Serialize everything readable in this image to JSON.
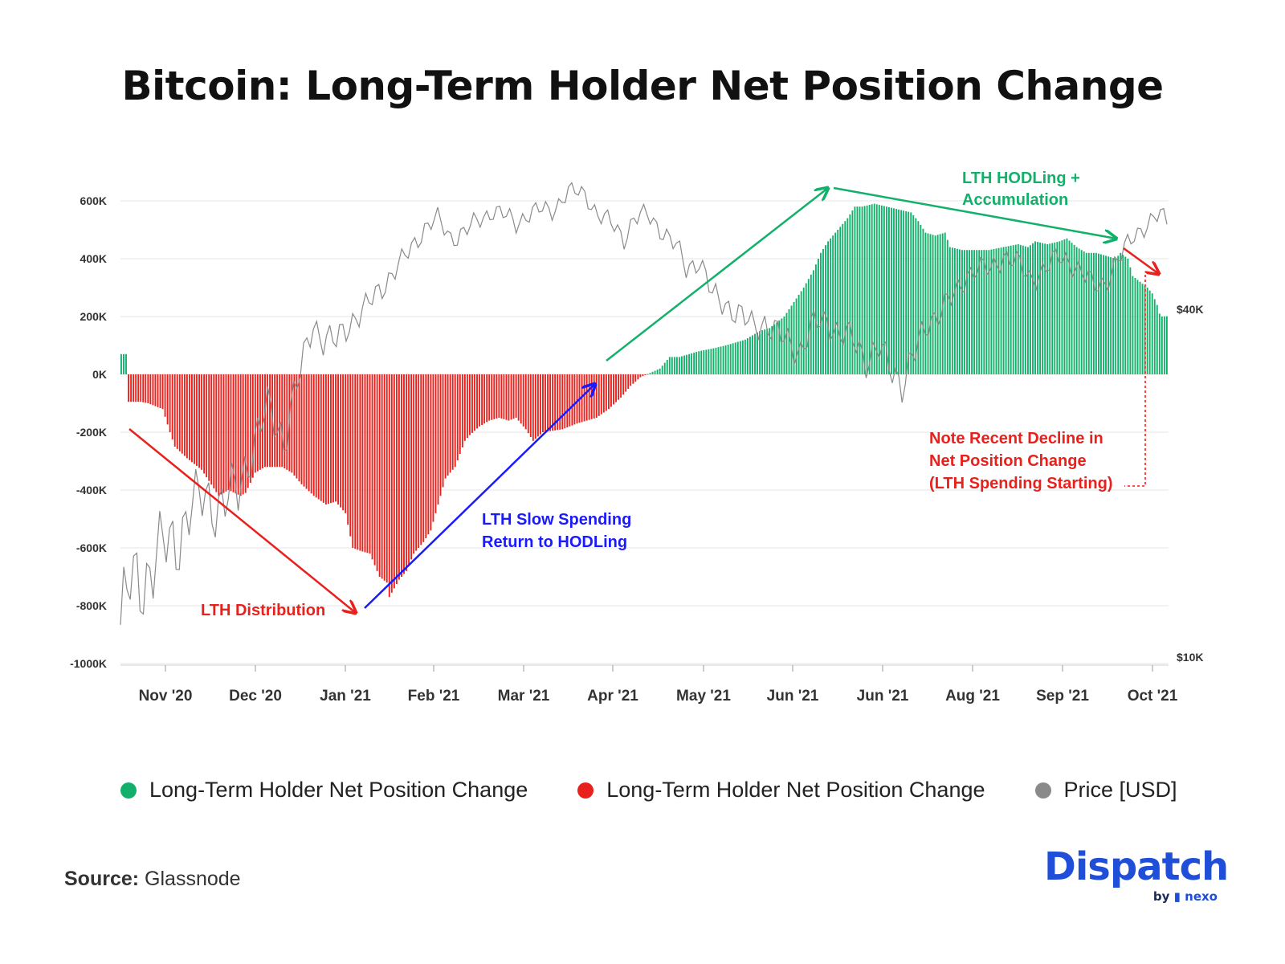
{
  "title": "Bitcoin: Long-Term Holder Net Position Change",
  "chart_data": {
    "type": "bar",
    "x_tick_labels": [
      "Nov '20",
      "Dec '20",
      "Jan '21",
      "Feb '21",
      "Mar '21",
      "Apr '21",
      "May '21",
      "Jun '21",
      "Jun '21",
      "Aug '21",
      "Sep '21",
      "Oct '21"
    ],
    "y_tick_labels": [
      "600K",
      "400K",
      "200K",
      "0K",
      "-200K",
      "-400K",
      "-600K",
      "-800K",
      "-1000K"
    ],
    "ylim": [
      -1000000,
      650000
    ],
    "y2_tick_labels": [
      "$40K",
      "$10K"
    ],
    "grid": true,
    "legend_position": "bottom",
    "series": [
      {
        "name": "Long-Term Holder Net Position Change",
        "color": "#12b06a",
        "kind": "bar",
        "x_range": [
          "2020-10-23",
          "2021-10-05"
        ],
        "anchors": [
          [
            0,
            70000
          ],
          [
            2,
            70000
          ],
          [
            3,
            -95000
          ],
          [
            8,
            -95000
          ],
          [
            11,
            -100000
          ],
          [
            14,
            -110000
          ],
          [
            17,
            -120000
          ],
          [
            20,
            -200000
          ],
          [
            22,
            -250000
          ],
          [
            27,
            -290000
          ],
          [
            33,
            -330000
          ],
          [
            40,
            -420000
          ],
          [
            44,
            -400000
          ],
          [
            49,
            -420000
          ],
          [
            51,
            -410000
          ],
          [
            55,
            -340000
          ],
          [
            59,
            -320000
          ],
          [
            66,
            -320000
          ],
          [
            70,
            -340000
          ],
          [
            74,
            -380000
          ],
          [
            79,
            -420000
          ],
          [
            84,
            -450000
          ],
          [
            88,
            -440000
          ],
          [
            90,
            -460000
          ],
          [
            92,
            -480000
          ],
          [
            95,
            -600000
          ],
          [
            98,
            -610000
          ],
          [
            102,
            -620000
          ],
          [
            106,
            -700000
          ],
          [
            109,
            -720000
          ],
          [
            110,
            -770000
          ],
          [
            114,
            -710000
          ],
          [
            117,
            -680000
          ],
          [
            120,
            -620000
          ],
          [
            124,
            -580000
          ],
          [
            127,
            -540000
          ],
          [
            130,
            -450000
          ],
          [
            133,
            -360000
          ],
          [
            137,
            -320000
          ],
          [
            141,
            -230000
          ],
          [
            143,
            -210000
          ],
          [
            147,
            -180000
          ],
          [
            151,
            -160000
          ],
          [
            155,
            -150000
          ],
          [
            159,
            -160000
          ],
          [
            162,
            -150000
          ],
          [
            164,
            -170000
          ],
          [
            166,
            -190000
          ],
          [
            169,
            -230000
          ],
          [
            173,
            -200000
          ],
          [
            177,
            -195000
          ],
          [
            181,
            -190000
          ],
          [
            187,
            -170000
          ],
          [
            191,
            -160000
          ],
          [
            195,
            -150000
          ],
          [
            200,
            -120000
          ],
          [
            205,
            -80000
          ],
          [
            209,
            -40000
          ],
          [
            213,
            -10000
          ],
          [
            217,
            5000
          ],
          [
            221,
            20000
          ],
          [
            225,
            60000
          ],
          [
            229,
            60000
          ],
          [
            233,
            70000
          ],
          [
            237,
            80000
          ],
          [
            243,
            90000
          ],
          [
            248,
            100000
          ],
          [
            252,
            110000
          ],
          [
            256,
            120000
          ],
          [
            262,
            150000
          ],
          [
            266,
            160000
          ],
          [
            269,
            180000
          ],
          [
            272,
            200000
          ],
          [
            276,
            250000
          ],
          [
            280,
            300000
          ],
          [
            284,
            360000
          ],
          [
            287,
            420000
          ],
          [
            290,
            460000
          ],
          [
            294,
            500000
          ],
          [
            298,
            540000
          ],
          [
            301,
            580000
          ],
          [
            304,
            580000
          ],
          [
            309,
            590000
          ],
          [
            314,
            580000
          ],
          [
            319,
            570000
          ],
          [
            324,
            560000
          ],
          [
            327,
            530000
          ],
          [
            330,
            490000
          ],
          [
            334,
            480000
          ],
          [
            338,
            490000
          ],
          [
            340,
            440000
          ],
          [
            345,
            430000
          ],
          [
            350,
            430000
          ],
          [
            356,
            430000
          ],
          [
            362,
            440000
          ],
          [
            368,
            450000
          ],
          [
            372,
            440000
          ],
          [
            375,
            460000
          ],
          [
            380,
            450000
          ],
          [
            385,
            460000
          ],
          [
            388,
            470000
          ],
          [
            392,
            440000
          ],
          [
            396,
            420000
          ],
          [
            400,
            420000
          ],
          [
            404,
            410000
          ],
          [
            408,
            400000
          ],
          [
            410,
            420000
          ],
          [
            413,
            400000
          ],
          [
            415,
            340000
          ],
          [
            418,
            320000
          ],
          [
            421,
            300000
          ],
          [
            423,
            280000
          ],
          [
            425,
            240000
          ],
          [
            426,
            210000
          ],
          [
            427,
            200000
          ]
        ]
      },
      {
        "name": "Long-Term Holder Net Position Change",
        "color": "#e8211d",
        "kind": "bar"
      },
      {
        "name": "Price [USD]",
        "color": "#8a8a8a",
        "kind": "line",
        "anchors": [
          [
            0,
            11500
          ],
          [
            3,
            13500
          ],
          [
            8,
            14000
          ],
          [
            12,
            15500
          ],
          [
            17,
            16000
          ],
          [
            22,
            18500
          ],
          [
            26,
            19000
          ],
          [
            30,
            18500
          ],
          [
            36,
            19500
          ],
          [
            40,
            23000
          ],
          [
            45,
            27000
          ],
          [
            50,
            24000
          ],
          [
            55,
            31000
          ],
          [
            59,
            38000
          ],
          [
            62,
            35500
          ],
          [
            66,
            35000
          ],
          [
            70,
            38000
          ],
          [
            75,
            40000
          ],
          [
            81,
            44500
          ],
          [
            86,
            48000
          ],
          [
            90,
            52000
          ],
          [
            93,
            55000
          ],
          [
            97,
            57000
          ],
          [
            101,
            53000
          ],
          [
            105,
            54000
          ],
          [
            110,
            57000
          ],
          [
            114,
            59000
          ],
          [
            117,
            58000
          ],
          [
            121,
            56000
          ],
          [
            124,
            58000
          ],
          [
            128,
            59000
          ],
          [
            132,
            59000
          ],
          [
            137,
            63500
          ],
          [
            142,
            63000
          ],
          [
            146,
            58000
          ],
          [
            150,
            56000
          ],
          [
            154,
            53000
          ],
          [
            157,
            57000
          ],
          [
            161,
            58000
          ],
          [
            165,
            55000
          ],
          [
            170,
            51000
          ],
          [
            173,
            47000
          ],
          [
            177,
            48500
          ],
          [
            181,
            42000
          ],
          [
            185,
            41000
          ],
          [
            189,
            39000
          ],
          [
            193,
            37500
          ],
          [
            197,
            38000
          ],
          [
            201,
            36000
          ],
          [
            205,
            35000
          ],
          [
            208,
            34000
          ],
          [
            212,
            37500
          ],
          [
            216,
            38500
          ],
          [
            220,
            36000
          ],
          [
            224,
            35500
          ],
          [
            228,
            33000
          ],
          [
            232,
            34000
          ],
          [
            235,
            32000
          ],
          [
            239,
            30000
          ],
          [
            243,
            33500
          ],
          [
            247,
            38000
          ],
          [
            251,
            40000
          ],
          [
            255,
            42000
          ],
          [
            259,
            46000
          ],
          [
            262,
            47000
          ],
          [
            266,
            46500
          ],
          [
            270,
            49500
          ],
          [
            274,
            48000
          ],
          [
            278,
            45000
          ],
          [
            283,
            47000
          ],
          [
            287,
            49000
          ],
          [
            290,
            48500
          ],
          [
            294,
            46000
          ],
          [
            297,
            44000
          ],
          [
            301,
            44500
          ],
          [
            305,
            48000
          ],
          [
            310,
            54000
          ],
          [
            315,
            56000
          ],
          [
            318,
            58000
          ],
          [
            320,
            57000
          ]
        ]
      }
    ]
  },
  "annotations": {
    "distribution": "LTH Distribution",
    "slow_spending_1": "LTH Slow Spending",
    "slow_spending_2": "Return to HODLing",
    "hodling_1": "LTH HODLing +",
    "hodling_2": "Accumulation",
    "decline_1": "Note Recent Decline in",
    "decline_2": "Net Position  Change",
    "decline_3": "(LTH Spending Starting)"
  },
  "colors": {
    "positive": "#12b06a",
    "negative": "#e8211d",
    "price": "#8a8a8a",
    "blue_annotation": "#1a1aff",
    "brand": "#1f4fd8"
  },
  "legend": [
    {
      "label": "Long-Term Holder Net Position Change",
      "color": "#12b06a"
    },
    {
      "label": "Long-Term Holder Net Position Change",
      "color": "#e8211d"
    },
    {
      "label": "Price [USD]",
      "color": "#8a8a8a"
    }
  ],
  "source": {
    "label": "Source:",
    "value": "Glassnode"
  },
  "brand": {
    "name": "Dispatch",
    "by": "by",
    "partner": "nexo"
  }
}
